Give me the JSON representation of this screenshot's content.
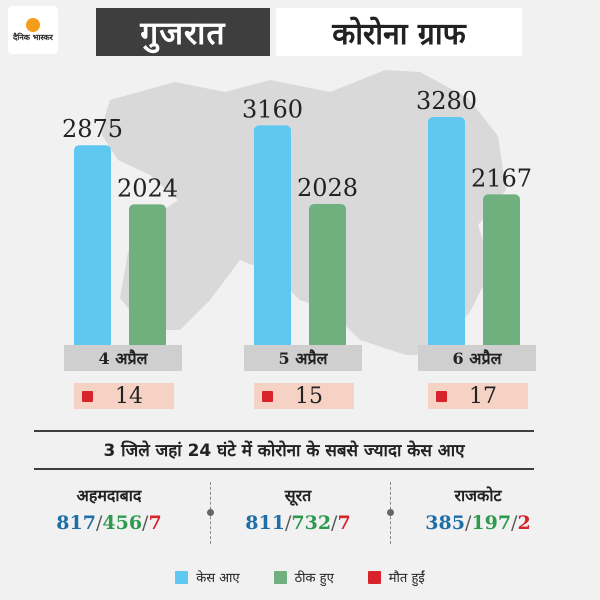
{
  "header": {
    "logo_text": "दैनिक भास्कर",
    "title": "गुजरात",
    "subtitle": "कोरोना ग्राफ"
  },
  "colors": {
    "cases": "#5ec8f0",
    "recovered": "#6fb07e",
    "deaths": "#d8232a",
    "cases_text": "#1e6fa8",
    "recovered_text": "#2e9a4f"
  },
  "chart_data": {
    "type": "bar",
    "categories": [
      "4 अप्रैल",
      "5 अप्रैल",
      "6 अप्रैल"
    ],
    "series": [
      {
        "name": "केस आए",
        "values": [
          2875,
          3160,
          3280
        ]
      },
      {
        "name": "ठीक हुए",
        "values": [
          2024,
          2028,
          2167
        ]
      },
      {
        "name": "मौत हुईं",
        "values": [
          14,
          15,
          17
        ]
      }
    ],
    "legend_position": "bottom",
    "background_icon": "gujarat-map-silhouette"
  },
  "dates": {
    "d1": {
      "label": "4 अप्रैल",
      "deaths": "14"
    },
    "d2": {
      "label": "5 अप्रैल",
      "deaths": "15"
    },
    "d3": {
      "label": "6 अप्रैल",
      "deaths": "17"
    }
  },
  "districts": {
    "title": "3 जिले जहां 24 घंटे में कोरोना के सबसे ज्यादा केस आए",
    "separator": "/",
    "items": [
      {
        "name": "अहमदाबाद",
        "cases": "817",
        "recovered": "456",
        "deaths": "7"
      },
      {
        "name": "सूरत",
        "cases": "811",
        "recovered": "732",
        "deaths": "7"
      },
      {
        "name": "राजकोट",
        "cases": "385",
        "recovered": "197",
        "deaths": "2"
      }
    ]
  },
  "legend": {
    "cases": "केस आए",
    "recovered": "ठीक हुए",
    "deaths": "मौत हुईं"
  }
}
